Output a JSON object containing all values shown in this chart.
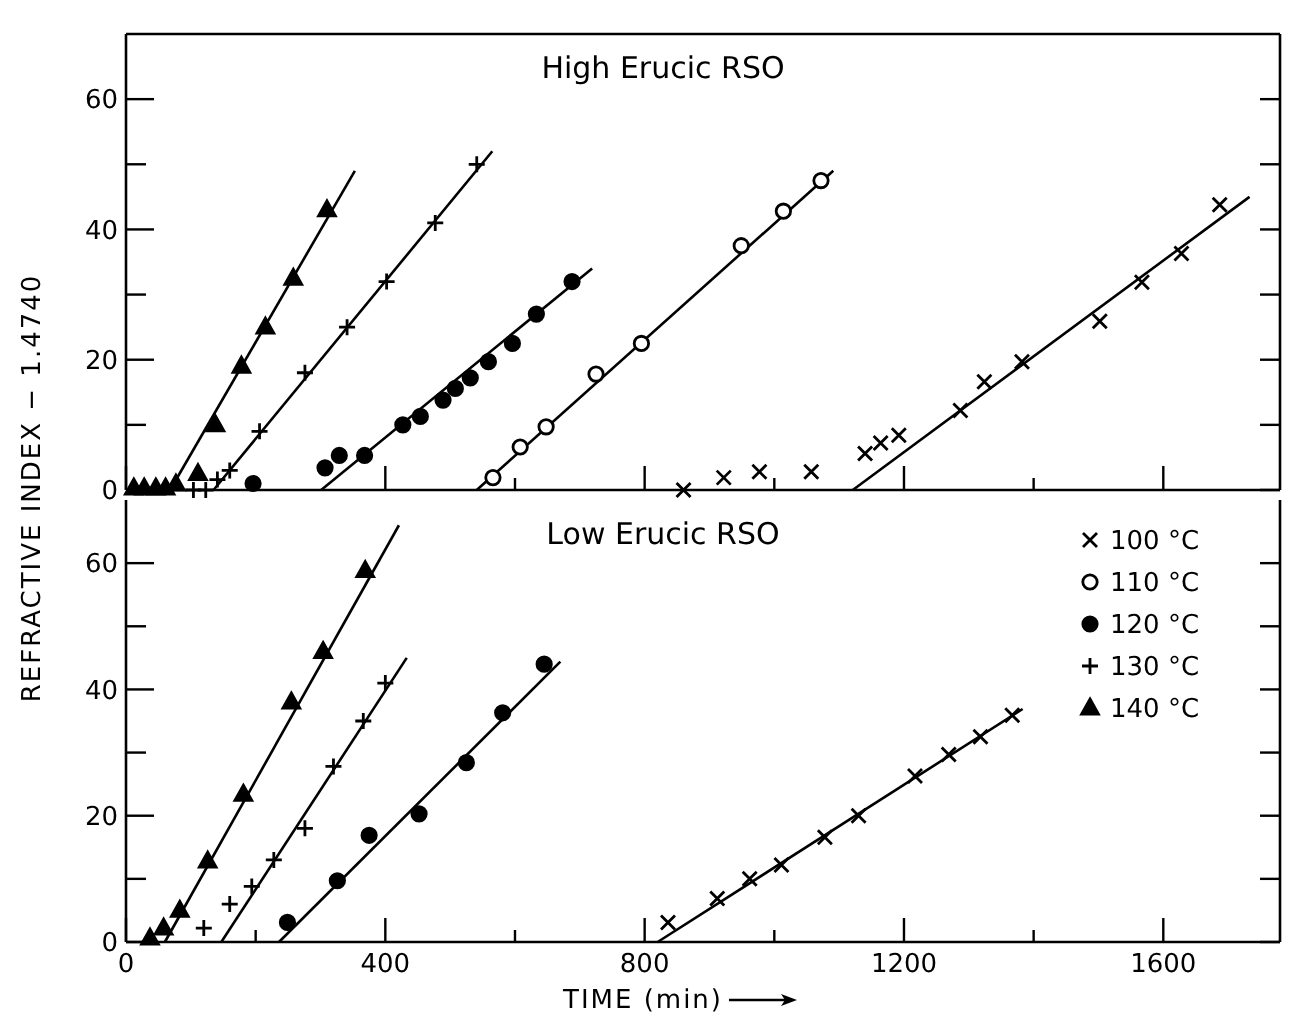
{
  "chart_data": [
    {
      "type": "scatter",
      "title": "High Erucic RSO",
      "ylabel": "REFRACTIVE INDEX − 1.4740",
      "xlim": [
        0,
        1780
      ],
      "ylim": [
        0,
        70
      ],
      "xticks": [
        0,
        {
          "value": 200,
          "label": null
        },
        400,
        {
          "value": 600,
          "label": null
        },
        800,
        {
          "value": 1000,
          "label": null
        },
        1200,
        {
          "value": 1400,
          "label": null
        },
        1600
      ],
      "yticks": [
        0,
        {
          "value": 10,
          "label": null
        },
        20,
        {
          "value": 30,
          "label": null
        },
        40,
        {
          "value": 50,
          "label": null
        },
        60
      ],
      "tick_labels": "y",
      "grid": false,
      "legend": false,
      "series": [
        {
          "marker": "x",
          "color": "#000000",
          "x": [
            860,
            922,
            977,
            1057,
            1140,
            1164,
            1192,
            1287,
            1324,
            1382,
            1502,
            1567,
            1628,
            1687
          ],
          "values": [
            0,
            1.9,
            2.8,
            2.8,
            5.6,
            7.2,
            8.4,
            12.2,
            16.6,
            19.7,
            25.9,
            31.9,
            36.3,
            43.8
          ]
        },
        {
          "marker": "circle",
          "color": "#ffffff",
          "x": [
            566,
            608,
            648,
            725,
            795,
            949,
            1014,
            1072
          ],
          "values": [
            1.9,
            6.6,
            9.7,
            17.8,
            22.5,
            37.5,
            42.8,
            47.5
          ]
        },
        {
          "marker": "circle",
          "color": "#000000",
          "x": [
            196,
            307,
            329,
            368,
            427,
            454,
            489,
            508,
            531,
            559,
            596,
            633,
            688
          ],
          "values": [
            1,
            3.4,
            5.3,
            5.3,
            10,
            11.3,
            13.8,
            15.6,
            17.2,
            19.7,
            22.5,
            27,
            32
          ]
        },
        {
          "marker": "cross",
          "color": "#000000",
          "x": [
            104,
            123,
            141,
            160,
            206,
            276,
            341,
            402,
            477,
            541
          ],
          "values": [
            0,
            0,
            1.6,
            3,
            9,
            18,
            25,
            32,
            41,
            50
          ]
        },
        {
          "marker": "triangle",
          "color": "#000000",
          "x": [
            12,
            28,
            46,
            61,
            77,
            111,
            138,
            178,
            215,
            258,
            310
          ],
          "values": [
            0.3,
            0.3,
            0.3,
            0.3,
            0.9,
            2.5,
            10,
            19,
            25,
            32.5,
            43
          ]
        },
        {
          "type": "line",
          "color": "#000000",
          "x": [
            1121,
            1733
          ],
          "values": [
            0,
            45
          ]
        },
        {
          "type": "line",
          "color": "#000000",
          "x": [
            541,
            1091
          ],
          "values": [
            0,
            49
          ]
        },
        {
          "type": "line",
          "color": "#000000",
          "x": [
            301,
            719
          ],
          "values": [
            0,
            34
          ]
        },
        {
          "type": "line",
          "color": "#000000",
          "x": [
            135,
            565
          ],
          "values": [
            0,
            52
          ]
        },
        {
          "type": "line",
          "color": "#000000",
          "x": [
            68,
            353
          ],
          "values": [
            0,
            49
          ]
        }
      ]
    },
    {
      "type": "scatter",
      "title": "Low Erucic RSO",
      "xlabel": "TIME (min)",
      "xlim": [
        0,
        1780
      ],
      "ylim": [
        0,
        70
      ],
      "xticks": [
        0,
        {
          "value": 200,
          "label": null
        },
        400,
        {
          "value": 600,
          "label": null
        },
        800,
        {
          "value": 1000,
          "label": null
        },
        1200,
        {
          "value": 1400,
          "label": null
        },
        1600
      ],
      "yticks": [
        0,
        {
          "value": 10,
          "label": null
        },
        20,
        {
          "value": 30,
          "label": null
        },
        40,
        {
          "value": 50,
          "label": null
        },
        60
      ],
      "grid": false,
      "legend": "top right",
      "series": [
        {
          "name": "100 °C",
          "marker": "x",
          "color": "#000000",
          "x": [
            836,
            912,
            962,
            1011,
            1078,
            1130,
            1217,
            1269,
            1318,
            1367
          ],
          "values": [
            3.1,
            6.9,
            10,
            12.2,
            16.6,
            20,
            26.3,
            29.7,
            32.5,
            35.9
          ]
        },
        {
          "name": "110 °C",
          "marker": "circle",
          "color": "#ffffff"
        },
        {
          "name": "120 °C",
          "marker": "circle",
          "color": "#000000",
          "x": [
            249,
            326,
            375,
            452,
            525,
            581,
            645
          ],
          "values": [
            3.1,
            9.7,
            16.9,
            20.3,
            28.4,
            36.3,
            44
          ]
        },
        {
          "name": "130 °C",
          "marker": "cross",
          "color": "#000000",
          "x": [
            120,
            160,
            194,
            228,
            276,
            320,
            366,
            400
          ],
          "values": [
            2.2,
            6,
            8.8,
            13,
            18,
            27.8,
            35,
            41
          ]
        },
        {
          "name": "140 °C",
          "marker": "triangle",
          "color": "#000000",
          "x": [
            37,
            58,
            83,
            126,
            181,
            255,
            304,
            369
          ],
          "values": [
            0.6,
            2.2,
            5,
            12.8,
            23.4,
            38,
            46,
            58.8
          ]
        },
        {
          "type": "line",
          "color": "#000000",
          "x": [
            820,
            1383
          ],
          "values": [
            0,
            36.9
          ]
        },
        {
          "type": "line",
          "color": "#000000",
          "x": [
            236,
            670
          ],
          "values": [
            0,
            44.4
          ]
        },
        {
          "type": "line",
          "color": "#000000",
          "x": [
            147,
            433
          ],
          "values": [
            0,
            45
          ]
        },
        {
          "type": "line",
          "color": "#000000",
          "x": [
            60,
            421
          ],
          "values": [
            0,
            66
          ]
        }
      ]
    }
  ]
}
